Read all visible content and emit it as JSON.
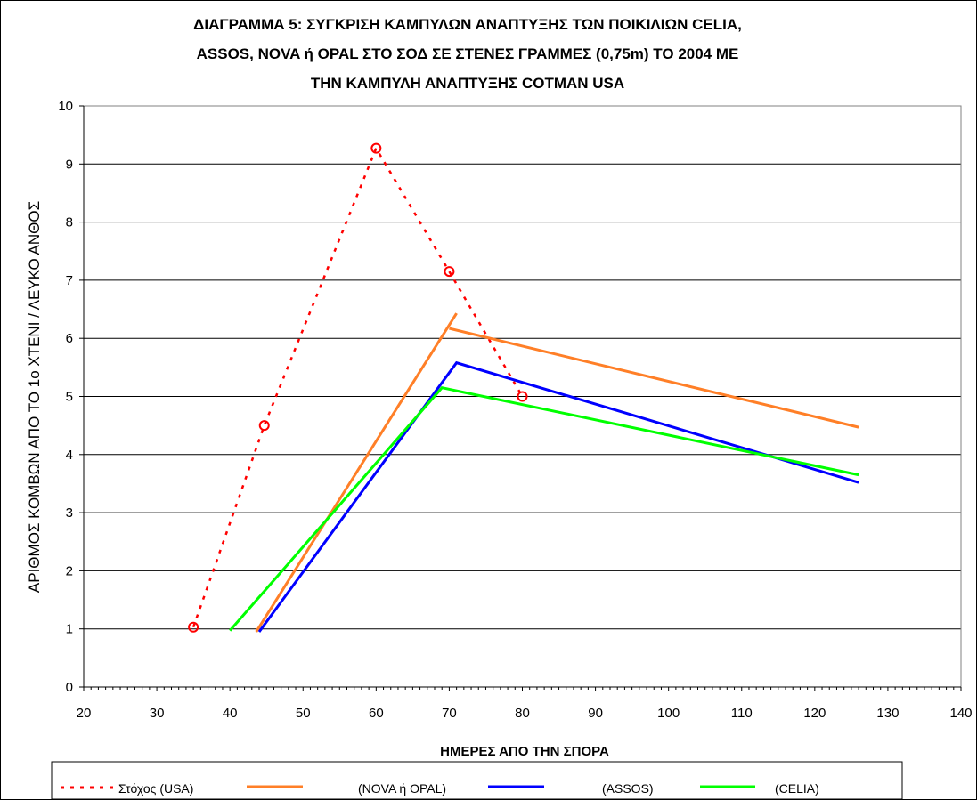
{
  "chart_data": {
    "type": "line",
    "title_lines": [
      "ΔΙΑΓΡΑΜΜΑ 5: ΣΥΓΚΡΙΣΗ ΚΑΜΠΥΛΩΝ ΑΝΑΠΤΥΞΗΣ ΤΩΝ ΠΟΙΚΙΛΙΩΝ CELIA,",
      "ASSOS, NOVA ή OPAL ΣΤΟ ΣΟΔ ΣΕ ΣΤΕΝΕΣ ΓΡΑΜΜΕΣ (0,75m) ΤΟ 2004 ΜΕ",
      "ΤΗΝ ΚΑΜΠΥΛΗ ΑΝΑΠΤΥΞΗΣ COTMAN USA"
    ],
    "xlabel": "ΗΜΕΡΕΣ ΑΠΟ ΤΗΝ ΣΠΟΡΑ",
    "ylabel": "ΑΡΙΘΜΟΣ ΚΟΜΒΩΝ ΑΠΟ ΤΟ 1ο ΧΤΕΝΙ  / ΛΕΥΚΟ ΑΝΘΟΣ",
    "xlim": [
      20,
      140
    ],
    "ylim": [
      0,
      10
    ],
    "xticks": [
      20,
      30,
      40,
      50,
      60,
      70,
      80,
      90,
      100,
      110,
      120,
      130,
      140
    ],
    "yticks": [
      0,
      1,
      2,
      3,
      4,
      5,
      6,
      7,
      8,
      9,
      10
    ],
    "grid": "horizontal",
    "legend_position": "bottom",
    "series": [
      {
        "name": "Στόχος (USA)",
        "color": "#ff0000",
        "style": "dotted-markers",
        "marker": "circle",
        "points": [
          [
            35,
            1.03
          ],
          [
            44.7,
            4.5
          ],
          [
            60,
            9.27
          ],
          [
            70,
            7.15
          ],
          [
            80,
            5.0
          ]
        ]
      },
      {
        "name": "(NOVA ή OPAL)",
        "color": "#ff7f27",
        "style": "solid",
        "segments": [
          [
            [
              43.6,
              0.95
            ],
            [
              71,
              6.43
            ]
          ],
          [
            [
              70,
              6.17
            ],
            [
              126,
              4.47
            ]
          ]
        ]
      },
      {
        "name": "(ASSOS)",
        "color": "#0000ff",
        "style": "solid",
        "points": [
          [
            44,
            0.95
          ],
          [
            71,
            5.58
          ],
          [
            126,
            3.52
          ]
        ]
      },
      {
        "name": "(CELIA)",
        "color": "#00ff00",
        "style": "solid",
        "points": [
          [
            40,
            0.97
          ],
          [
            69,
            5.15
          ],
          [
            126,
            3.65
          ]
        ]
      }
    ]
  }
}
